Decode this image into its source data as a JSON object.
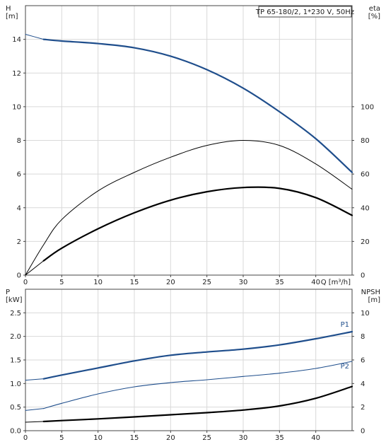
{
  "chart_data": [
    {
      "type": "line",
      "legend_text": "TP 65-180/2, 1*230 V, 50Hz",
      "legend_placement": "top-right",
      "grid": true,
      "xlabel": "Q [m³/h]",
      "ylabel_left": [
        "H",
        "[m]"
      ],
      "ylabel_right": [
        "eta",
        "[%]"
      ],
      "xlim": [
        0,
        45
      ],
      "ylim_left": [
        0,
        16
      ],
      "ylim_right": [
        0,
        160
      ],
      "x_ticks": [
        0,
        5,
        10,
        15,
        20,
        25,
        30,
        35,
        40
      ],
      "y_ticks_left": [
        0,
        2,
        4,
        6,
        8,
        10,
        12,
        14
      ],
      "y_ticks_right": [
        0,
        20,
        40,
        60,
        80,
        100
      ],
      "series": [
        {
          "axis": "left",
          "color": "#1f4e8c",
          "width": 2.2,
          "dashed_start": true,
          "x": [
            0,
            2.5,
            5,
            10,
            15,
            20,
            25,
            30,
            35,
            40,
            45
          ],
          "y": [
            14.3,
            14.0,
            13.9,
            13.75,
            13.5,
            13.0,
            12.2,
            11.1,
            9.7,
            8.1,
            6.1
          ]
        },
        {
          "axis": "right",
          "color": "#000000",
          "width": 1.0,
          "x": [
            0,
            2.5,
            5,
            10,
            15,
            20,
            25,
            30,
            35,
            40,
            45
          ],
          "y": [
            0,
            18,
            33,
            50,
            61,
            70,
            77,
            80,
            77,
            66,
            51
          ]
        },
        {
          "axis": "left",
          "color": "#000000",
          "width": 2.2,
          "dashed_start": true,
          "x": [
            0,
            2.5,
            5,
            10,
            15,
            20,
            25,
            30,
            35,
            40,
            45
          ],
          "y": [
            0,
            0.85,
            1.6,
            2.75,
            3.7,
            4.45,
            4.95,
            5.2,
            5.15,
            4.6,
            3.55
          ]
        }
      ]
    },
    {
      "type": "line",
      "grid": true,
      "ylabel_left": [
        "P",
        "[kW]"
      ],
      "ylabel_right": [
        "NPSH",
        "[m]"
      ],
      "xlim": [
        0,
        45
      ],
      "ylim_left": [
        0,
        3.0
      ],
      "ylim_right": [
        0,
        12
      ],
      "x_ticks": [
        0,
        5,
        10,
        15,
        20,
        25,
        30,
        35,
        40
      ],
      "y_ticks_left": [
        "0.0",
        "0.5",
        "1.0",
        "1.5",
        "2.0",
        "2.5"
      ],
      "y_ticks_right": [
        0,
        2,
        4,
        6,
        8,
        10
      ],
      "series": [
        {
          "name": "P1",
          "axis": "left",
          "color": "#1f4e8c",
          "width": 2.2,
          "dashed_start": true,
          "x": [
            0,
            2.5,
            5,
            10,
            15,
            20,
            25,
            30,
            35,
            40,
            45
          ],
          "y": [
            1.07,
            1.1,
            1.18,
            1.33,
            1.48,
            1.6,
            1.67,
            1.73,
            1.82,
            1.95,
            2.1
          ]
        },
        {
          "name": "P2",
          "axis": "left",
          "color": "#1f4e8c",
          "width": 1.1,
          "dashed_start": true,
          "x": [
            0,
            2.5,
            5,
            10,
            15,
            20,
            25,
            30,
            35,
            40,
            45
          ],
          "y": [
            0.43,
            0.47,
            0.58,
            0.78,
            0.93,
            1.02,
            1.08,
            1.15,
            1.22,
            1.32,
            1.47
          ]
        },
        {
          "axis": "right",
          "color": "#000000",
          "width": 2.2,
          "dashed_start": true,
          "x": [
            0,
            2.5,
            5,
            10,
            15,
            20,
            25,
            30,
            35,
            40,
            45
          ],
          "y": [
            0.72,
            0.78,
            0.86,
            1.0,
            1.17,
            1.35,
            1.53,
            1.75,
            2.1,
            2.75,
            3.75
          ]
        }
      ]
    }
  ]
}
